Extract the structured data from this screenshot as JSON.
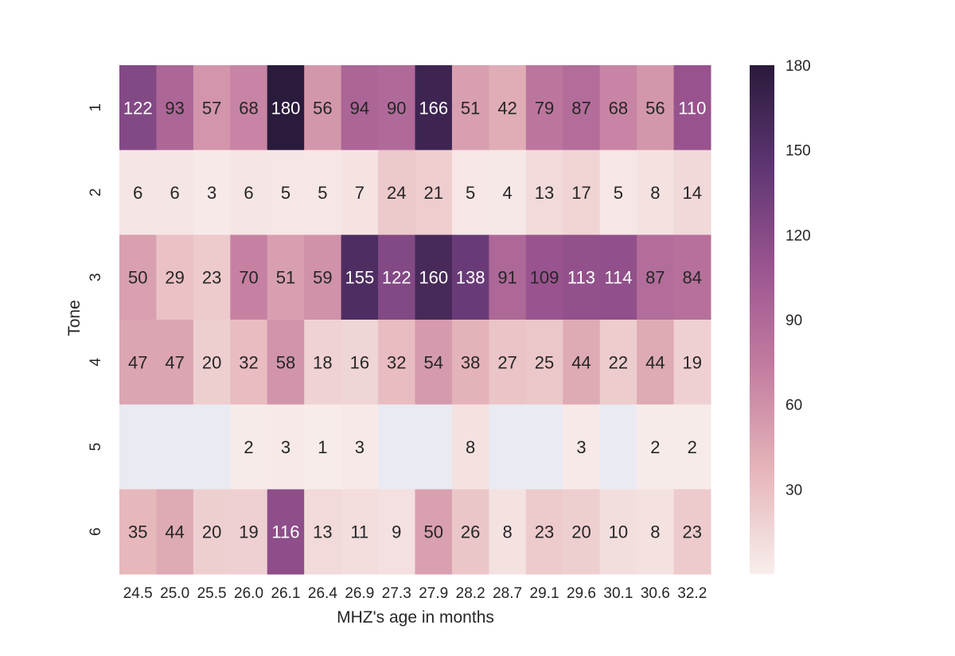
{
  "chart_data": {
    "type": "heatmap",
    "title": "",
    "xlabel": "MHZ's age in months",
    "ylabel": "Tone",
    "x_categories": [
      "24.5",
      "25.0",
      "25.5",
      "26.0",
      "26.1",
      "26.4",
      "26.9",
      "27.3",
      "27.9",
      "28.2",
      "28.7",
      "29.1",
      "29.6",
      "30.1",
      "30.6",
      "32.2"
    ],
    "y_categories": [
      "1",
      "2",
      "3",
      "4",
      "5",
      "6"
    ],
    "values": [
      [
        122,
        93,
        57,
        68,
        180,
        56,
        94,
        90,
        166,
        51,
        42,
        79,
        87,
        68,
        56,
        110
      ],
      [
        6,
        6,
        3,
        6,
        5,
        5,
        7,
        24,
        21,
        5,
        4,
        13,
        17,
        5,
        8,
        14
      ],
      [
        50,
        29,
        23,
        70,
        51,
        59,
        155,
        122,
        160,
        138,
        91,
        109,
        113,
        114,
        87,
        84
      ],
      [
        47,
        47,
        20,
        32,
        58,
        18,
        16,
        32,
        54,
        38,
        27,
        25,
        44,
        22,
        44,
        19
      ],
      [
        null,
        null,
        null,
        2,
        3,
        1,
        3,
        null,
        null,
        8,
        null,
        null,
        3,
        null,
        2,
        2
      ],
      [
        35,
        44,
        20,
        19,
        116,
        13,
        11,
        9,
        50,
        26,
        8,
        23,
        20,
        10,
        8,
        23
      ]
    ],
    "colorbar": {
      "min": 0,
      "max": 180,
      "ticks": [
        30,
        60,
        90,
        120,
        150,
        180
      ],
      "colors": [
        "#f8eeec",
        "#e6b6ba",
        "#c47ea1",
        "#9b5590",
        "#5e3673",
        "#2a1a3b"
      ]
    },
    "missing_color": "#eaeaf2",
    "light_text_color": "#ffffff",
    "dark_text_color": "#262626"
  }
}
